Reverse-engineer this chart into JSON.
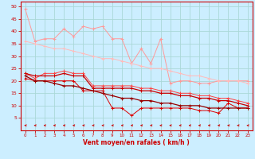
{
  "xlabel": "Vent moyen/en rafales ( km/h )",
  "bg_color": "#cceeff",
  "x": [
    0,
    1,
    2,
    3,
    4,
    5,
    6,
    7,
    8,
    9,
    10,
    11,
    12,
    13,
    14,
    15,
    16,
    17,
    18,
    19,
    20,
    21,
    22,
    23
  ],
  "ylim": [
    0,
    52
  ],
  "yticks": [
    5,
    10,
    15,
    20,
    25,
    30,
    35,
    40,
    45,
    50
  ],
  "lines": [
    {
      "color": "#ff9999",
      "marker": "+",
      "markersize": 3,
      "linewidth": 0.7,
      "y": [
        49,
        36,
        37,
        37,
        41,
        38,
        42,
        41,
        42,
        37,
        37,
        27,
        33,
        27,
        37,
        19,
        20,
        20,
        19,
        19,
        20,
        20,
        20,
        20
      ]
    },
    {
      "color": "#ffbbbb",
      "marker": "+",
      "markersize": 3,
      "linewidth": 0.7,
      "y": [
        36,
        35,
        34,
        33,
        33,
        32,
        31,
        30,
        29,
        29,
        28,
        27,
        26,
        25,
        25,
        24,
        23,
        22,
        22,
        21,
        20,
        20,
        20,
        19
      ]
    },
    {
      "color": "#ff4444",
      "marker": "+",
      "markersize": 3,
      "linewidth": 0.7,
      "y": [
        23,
        21,
        23,
        23,
        24,
        23,
        23,
        18,
        18,
        18,
        18,
        18,
        17,
        17,
        16,
        16,
        15,
        15,
        14,
        14,
        13,
        13,
        12,
        11
      ]
    },
    {
      "color": "#cc0000",
      "marker": "+",
      "markersize": 3,
      "linewidth": 0.9,
      "y": [
        23,
        22,
        22,
        22,
        23,
        22,
        22,
        17,
        17,
        17,
        17,
        17,
        16,
        16,
        15,
        15,
        14,
        14,
        13,
        13,
        12,
        12,
        11,
        10
      ]
    },
    {
      "color": "#dd0000",
      "marker": "+",
      "markersize": 3,
      "linewidth": 0.7,
      "y": [
        21,
        20,
        20,
        20,
        20,
        20,
        16,
        16,
        16,
        9,
        9,
        6,
        9,
        9,
        9,
        9,
        9,
        9,
        8,
        8,
        7,
        11,
        9,
        9
      ]
    },
    {
      "color": "#990000",
      "marker": "+",
      "markersize": 3,
      "linewidth": 0.9,
      "y": [
        22,
        20,
        20,
        19,
        18,
        18,
        17,
        16,
        15,
        14,
        13,
        13,
        12,
        12,
        11,
        11,
        10,
        10,
        10,
        9,
        9,
        9,
        9,
        9
      ]
    }
  ],
  "grid_color": "#aad8d8",
  "tick_color": "#cc0000",
  "label_color": "#cc0000",
  "axis_color": "#cc0000",
  "arrow_color": "#cc0000"
}
